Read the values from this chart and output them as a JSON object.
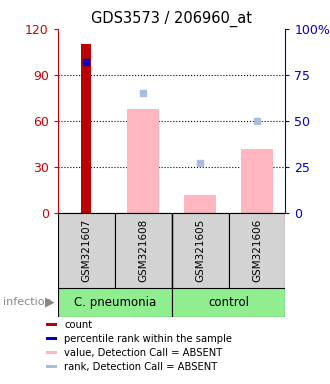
{
  "title": "GDS3573 / 206960_at",
  "samples": [
    "GSM321607",
    "GSM321608",
    "GSM321605",
    "GSM321606"
  ],
  "left_ylim": [
    0,
    120
  ],
  "right_ylim": [
    0,
    100
  ],
  "left_yticks": [
    0,
    30,
    60,
    90,
    120
  ],
  "right_yticks": [
    0,
    25,
    50,
    75,
    100
  ],
  "left_yticklabels": [
    "0",
    "30",
    "60",
    "90",
    "120"
  ],
  "right_yticklabels": [
    "0",
    "25",
    "50",
    "75",
    "100%"
  ],
  "count_values": [
    110,
    0,
    0,
    0
  ],
  "percentile_rank_values": [
    82,
    0,
    0,
    0
  ],
  "absent_value_bars": [
    0,
    68,
    12,
    42
  ],
  "absent_rank_values": [
    0,
    65,
    27,
    50
  ],
  "count_color": "#BB0000",
  "percentile_color": "#0000CC",
  "absent_bar_color": "#FFB6C1",
  "absent_rank_color": "#AABBDD",
  "left_axis_color": "#CC0000",
  "right_axis_color": "#0000CC",
  "sample_box_color": "#D3D3D3",
  "group1_label": "C. pneumonia",
  "group2_label": "control",
  "group_color": "#90EE90",
  "infection_label": "infection",
  "legend_items": [
    {
      "color": "#BB0000",
      "label": "count"
    },
    {
      "color": "#0000CC",
      "label": "percentile rank within the sample"
    },
    {
      "color": "#FFB6C1",
      "label": "value, Detection Call = ABSENT"
    },
    {
      "color": "#AABBDD",
      "label": "rank, Detection Call = ABSENT"
    }
  ],
  "grid_lines": [
    30,
    60,
    90
  ],
  "figsize": [
    3.3,
    3.84
  ],
  "dpi": 100
}
